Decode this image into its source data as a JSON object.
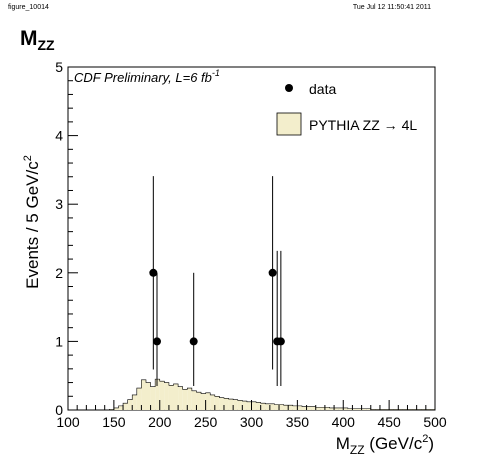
{
  "header": {
    "figure_id": "figure_10014",
    "timestamp": "Tue Jul 12 11:50:41 2011"
  },
  "title": {
    "main": "M",
    "sub": "ZZ"
  },
  "chart_data": {
    "type": "bar",
    "title": "M_ZZ",
    "annotation": "CDF Preliminary, L=6 fb",
    "annotation_sup": "-1",
    "xlabel": {
      "main": "M",
      "sub": "ZZ",
      "rest": " (GeV/c",
      "sup": "2",
      "end": ")"
    },
    "ylabel": {
      "main": "Events / 5 GeV/c",
      "sup": "2"
    },
    "xlim": [
      100,
      500
    ],
    "ylim": [
      0,
      5
    ],
    "x_ticks": [
      100,
      150,
      200,
      250,
      300,
      350,
      400,
      450,
      500
    ],
    "y_ticks": [
      0,
      1,
      2,
      3,
      4,
      5
    ],
    "legend": {
      "placement": "top-right",
      "entries": [
        {
          "label": "data",
          "marker": "dot"
        },
        {
          "label": "PYTHIA ZZ → 4L",
          "marker": "fill",
          "color": "#f3eecc"
        }
      ]
    },
    "series": [
      {
        "name": "PYTHIA ZZ → 4L",
        "kind": "histogram",
        "bin_width": 5,
        "bin_start": 145,
        "values": [
          0.01,
          0.03,
          0.06,
          0.1,
          0.15,
          0.22,
          0.32,
          0.44,
          0.4,
          0.34,
          0.45,
          0.42,
          0.4,
          0.36,
          0.38,
          0.34,
          0.3,
          0.32,
          0.28,
          0.26,
          0.24,
          0.25,
          0.22,
          0.2,
          0.18,
          0.17,
          0.16,
          0.15,
          0.14,
          0.13,
          0.12,
          0.12,
          0.11,
          0.1,
          0.09,
          0.09,
          0.08,
          0.08,
          0.07,
          0.07,
          0.06,
          0.06,
          0.05,
          0.05,
          0.05,
          0.04,
          0.04,
          0.04,
          0.03,
          0.03,
          0.03,
          0.03,
          0.02,
          0.02,
          0.02,
          0.02,
          0.02,
          0.01,
          0.01,
          0.01,
          0.01,
          0.01,
          0.01,
          0.01,
          0.01,
          0.01,
          0.01,
          0.01,
          0.01,
          0.01,
          0.01
        ]
      },
      {
        "name": "data",
        "kind": "points",
        "x": [
          193,
          197,
          237,
          323,
          328,
          332
        ],
        "y": [
          2,
          1,
          1,
          2,
          1,
          1
        ],
        "err_up": [
          1.41,
          1.0,
          1.0,
          1.41,
          1.32,
          1.32
        ],
        "err_down": [
          1.41,
          0.65,
          0.65,
          1.41,
          0.65,
          0.65
        ]
      }
    ]
  }
}
